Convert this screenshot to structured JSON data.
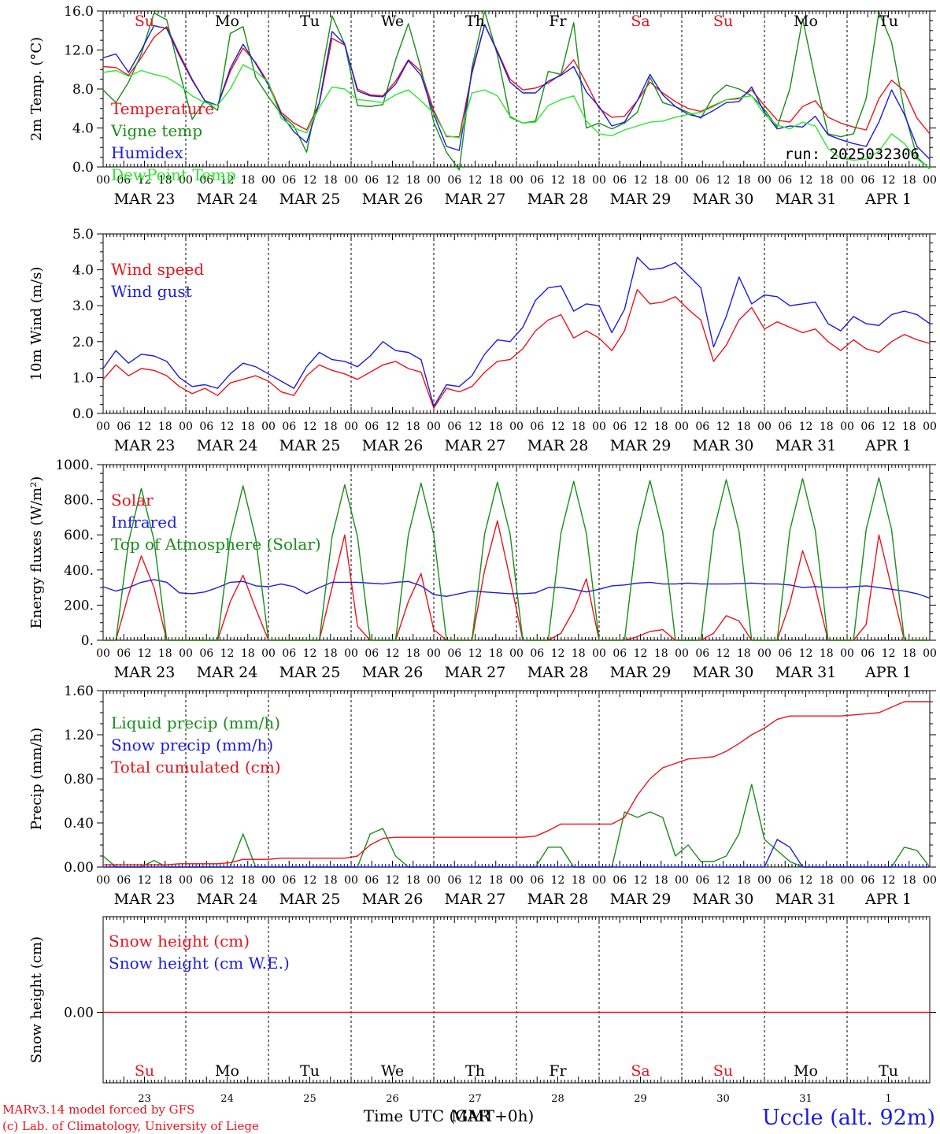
{
  "colors": {
    "red": "#e8141c",
    "green": "#1a8c1a",
    "blue": "#1c1cdc",
    "lightgreen": "#2ce82c",
    "black": "#000000"
  },
  "x_ticks": [
    "00",
    "06",
    "12",
    "18"
  ],
  "x_last_tick": "00",
  "date_labels": [
    "MAR 23",
    "MAR 24",
    "MAR 25",
    "MAR 26",
    "MAR 27",
    "MAR 28",
    "MAR 29",
    "MAR 30",
    "MAR 31",
    "APR  1"
  ],
  "day_names": [
    {
      "name": "Su",
      "weekend": true
    },
    {
      "name": "Mo",
      "weekend": false
    },
    {
      "name": "Tu",
      "weekend": false
    },
    {
      "name": "We",
      "weekend": false
    },
    {
      "name": "Th",
      "weekend": false
    },
    {
      "name": "Fr",
      "weekend": false
    },
    {
      "name": "Sa",
      "weekend": true
    },
    {
      "name": "Su",
      "weekend": true
    },
    {
      "name": "Mo",
      "weekend": false
    },
    {
      "name": "Tu",
      "weekend": false
    }
  ],
  "day_numbers": [
    "23",
    "24",
    "25",
    "26",
    "27",
    "28",
    "29",
    "30",
    "31",
    "1"
  ],
  "xlabel": "Time UTC (GMT+0h)",
  "xlabel_overlay": "MAR",
  "footer": {
    "model": "MARv3.14 model forced by GFS",
    "copyright": "(c) Lab. of Climatology, University of Liege",
    "station": "Uccle (alt. 92m)"
  },
  "chart_data": [
    {
      "type": "line",
      "ylabel": "2m Temp. (°C)",
      "ylim": [
        0,
        16
      ],
      "yticks": [
        "0.0",
        "4.0",
        "8.0",
        "12.0",
        "16.0"
      ],
      "annotation": "run: 2025032306",
      "x_unit": "hours since MAR 23 00 UTC, 3-hourly",
      "series": [
        {
          "name": "Temperature",
          "color": "red",
          "values": [
            10.3,
            10.2,
            9.4,
            11.2,
            13.3,
            14.4,
            11.6,
            9.0,
            6.8,
            6.3,
            9.8,
            12.2,
            10.7,
            8.6,
            5.6,
            4.5,
            3.8,
            6.5,
            13.2,
            12.5,
            8.0,
            7.4,
            7.3,
            8.8,
            11.0,
            9.8,
            5.8,
            3.1,
            3.1,
            9.6,
            14.6,
            11.9,
            9.0,
            7.9,
            8.1,
            8.6,
            9.5,
            11.0,
            8.6,
            6.0,
            5.1,
            5.2,
            6.8,
            8.7,
            7.6,
            6.7,
            6.0,
            5.7,
            6.3,
            6.9,
            7.0,
            7.9,
            6.3,
            4.8,
            4.6,
            6.2,
            6.8,
            5.1,
            4.5,
            4.1,
            3.8,
            7.0,
            8.9,
            7.8,
            5.0,
            3.4
          ]
        },
        {
          "name": "Vigne temp",
          "color": "green",
          "values": [
            7.9,
            6.6,
            8.7,
            11.6,
            15.8,
            15.1,
            9.8,
            4.9,
            6.8,
            5.8,
            13.7,
            14.4,
            9.2,
            7.2,
            5.4,
            4.2,
            1.5,
            8.2,
            15.5,
            12.6,
            6.3,
            6.2,
            6.4,
            11.0,
            14.7,
            10.1,
            4.6,
            1.5,
            -0.3,
            10.2,
            16.2,
            11.5,
            5.1,
            4.5,
            4.7,
            9.8,
            9.5,
            14.8,
            4.0,
            4.5,
            3.9,
            4.5,
            5.6,
            9.2,
            6.6,
            6.2,
            5.6,
            5.0,
            7.3,
            8.4,
            8.0,
            7.3,
            5.9,
            4.1,
            8.0,
            15.2,
            9.0,
            3.4,
            3.1,
            3.4,
            7.0,
            15.9,
            12.8,
            5.7,
            1.0,
            -0.2
          ]
        },
        {
          "name": "Humidex",
          "color": "blue",
          "values": [
            11.2,
            11.6,
            9.7,
            12.0,
            14.5,
            14.2,
            11.4,
            8.9,
            6.8,
            6.3,
            10.1,
            12.6,
            10.6,
            8.4,
            5.4,
            3.6,
            2.5,
            6.6,
            13.9,
            12.6,
            7.8,
            7.3,
            7.2,
            8.5,
            10.9,
            9.4,
            5.4,
            2.1,
            1.7,
            9.8,
            14.6,
            11.8,
            8.7,
            7.6,
            7.6,
            8.8,
            9.4,
            10.3,
            7.7,
            6.2,
            4.2,
            4.6,
            6.8,
            9.5,
            7.4,
            6.2,
            5.4,
            5.1,
            5.8,
            6.6,
            6.7,
            8.2,
            5.6,
            3.9,
            4.2,
            4.1,
            5.2,
            3.3,
            2.8,
            2.4,
            2.1,
            4.6,
            7.9,
            5.4,
            2.1,
            0.8
          ]
        },
        {
          "name": "DewPoint Temp",
          "color": "lightgreen",
          "values": [
            9.7,
            9.9,
            9.3,
            9.9,
            9.5,
            9.2,
            8.4,
            7.3,
            6.6,
            6.3,
            8.0,
            10.5,
            9.8,
            8.7,
            5.0,
            4.0,
            3.5,
            6.1,
            8.2,
            8.0,
            6.9,
            6.8,
            6.6,
            7.4,
            7.9,
            6.8,
            5.5,
            3.2,
            3.0,
            7.6,
            7.9,
            7.3,
            5.2,
            4.5,
            4.6,
            6.3,
            6.9,
            7.3,
            4.7,
            3.4,
            3.2,
            3.8,
            4.2,
            4.6,
            4.7,
            5.1,
            5.4,
            5.6,
            6.2,
            6.9,
            7.1,
            7.3,
            5.4,
            4.3,
            3.9,
            4.6,
            4.2,
            1.9,
            0.9,
            0.7,
            0.8,
            1.6,
            3.4,
            2.4,
            0.8,
            -0.1
          ]
        }
      ]
    },
    {
      "type": "line",
      "ylabel": "10m Wind (m/s)",
      "ylim": [
        0,
        5
      ],
      "yticks": [
        "0.0",
        "1.0",
        "2.0",
        "3.0",
        "4.0",
        "5.0"
      ],
      "x_unit": "hours since MAR 23 00 UTC, 3-hourly",
      "series": [
        {
          "name": "Wind speed",
          "color": "red",
          "values": [
            0.95,
            1.35,
            1.05,
            1.25,
            1.2,
            1.05,
            0.75,
            0.55,
            0.7,
            0.5,
            0.85,
            0.95,
            1.05,
            0.9,
            0.6,
            0.5,
            1.05,
            1.35,
            1.2,
            1.1,
            0.95,
            1.15,
            1.35,
            1.45,
            1.25,
            1.15,
            0.15,
            0.7,
            0.6,
            0.75,
            1.15,
            1.45,
            1.5,
            1.8,
            2.3,
            2.6,
            2.75,
            2.1,
            2.3,
            2.1,
            1.75,
            2.3,
            3.45,
            3.05,
            3.1,
            3.25,
            2.9,
            2.6,
            1.45,
            1.9,
            2.6,
            2.95,
            2.35,
            2.55,
            2.4,
            2.25,
            2.35,
            2.0,
            1.75,
            2.05,
            1.8,
            1.7,
            2.0,
            2.2,
            2.05,
            1.95
          ]
        },
        {
          "name": "Wind gust",
          "color": "blue",
          "values": [
            1.25,
            1.75,
            1.4,
            1.65,
            1.6,
            1.45,
            1.0,
            0.75,
            0.8,
            0.7,
            1.1,
            1.4,
            1.3,
            1.1,
            0.9,
            0.7,
            1.3,
            1.7,
            1.5,
            1.45,
            1.3,
            1.6,
            2.0,
            1.75,
            1.7,
            1.5,
            0.2,
            0.8,
            0.75,
            1.05,
            1.65,
            2.05,
            2.0,
            2.4,
            3.15,
            3.5,
            3.55,
            2.85,
            3.05,
            3.0,
            2.25,
            2.9,
            4.35,
            4.0,
            4.05,
            4.2,
            3.85,
            3.5,
            1.85,
            2.7,
            3.8,
            3.05,
            3.3,
            3.25,
            3.0,
            3.05,
            3.1,
            2.5,
            2.3,
            2.7,
            2.5,
            2.45,
            2.75,
            2.85,
            2.75,
            2.5
          ]
        }
      ]
    },
    {
      "type": "line",
      "ylabel": "Energy fluxes (W/m²)",
      "ylim": [
        0,
        1000
      ],
      "yticks": [
        "0.",
        "200.",
        "400.",
        "600.",
        "800.",
        "1000."
      ],
      "x_unit": "hours since MAR 23 00 UTC, 3-hourly",
      "series": [
        {
          "name": "Solar",
          "color": "red",
          "values": [
            0,
            0,
            260,
            480,
            300,
            0,
            0,
            0,
            0,
            0,
            220,
            370,
            180,
            0,
            0,
            0,
            0,
            0,
            300,
            600,
            80,
            0,
            0,
            0,
            220,
            380,
            60,
            0,
            0,
            0,
            400,
            680,
            350,
            0,
            0,
            0,
            40,
            170,
            350,
            0,
            0,
            0,
            20,
            50,
            60,
            0,
            0,
            0,
            40,
            140,
            110,
            0,
            0,
            0,
            210,
            510,
            300,
            0,
            0,
            0,
            90,
            600,
            300,
            0,
            0,
            0
          ]
        },
        {
          "name": "Infrared",
          "color": "blue",
          "values": [
            305,
            280,
            300,
            330,
            345,
            330,
            270,
            265,
            275,
            300,
            330,
            335,
            310,
            305,
            320,
            305,
            265,
            300,
            330,
            330,
            330,
            325,
            320,
            330,
            335,
            310,
            260,
            250,
            265,
            280,
            275,
            270,
            265,
            265,
            270,
            300,
            300,
            290,
            275,
            290,
            310,
            315,
            325,
            330,
            320,
            320,
            325,
            320,
            320,
            320,
            322,
            325,
            320,
            320,
            315,
            300,
            305,
            300,
            300,
            305,
            310,
            300,
            290,
            280,
            265,
            240
          ]
        },
        {
          "name": "Top of Atmosphere (Solar)",
          "color": "green",
          "values": [
            0,
            0,
            560,
            865,
            570,
            0,
            0,
            0,
            0,
            0,
            580,
            880,
            580,
            0,
            0,
            0,
            0,
            0,
            590,
            885,
            590,
            0,
            0,
            0,
            600,
            895,
            600,
            0,
            0,
            0,
            605,
            900,
            605,
            0,
            0,
            0,
            610,
            905,
            610,
            0,
            0,
            0,
            615,
            910,
            615,
            0,
            0,
            0,
            620,
            915,
            620,
            0,
            0,
            0,
            625,
            920,
            625,
            0,
            0,
            0,
            630,
            925,
            630,
            0,
            0,
            0
          ]
        }
      ]
    },
    {
      "type": "line",
      "ylabel": "Precip (mm/h)",
      "ylim": [
        0,
        1.6
      ],
      "yticks": [
        "0.00",
        "0.40",
        "0.80",
        "1.20",
        "1.60"
      ],
      "x_unit": "hours since MAR 23 00 UTC, 3-hourly",
      "series": [
        {
          "name": "Liquid precip (mm/h)",
          "color": "green",
          "values": [
            0.1,
            0,
            0,
            0,
            0.06,
            0,
            0,
            0,
            0,
            0,
            0,
            0.3,
            0,
            0,
            0,
            0,
            0,
            0,
            0,
            0,
            0,
            0.3,
            0.35,
            0.1,
            0,
            0,
            0,
            0,
            0,
            0,
            0,
            0,
            0,
            0,
            0,
            0.18,
            0.18,
            0,
            0,
            0,
            0,
            0.5,
            0.45,
            0.5,
            0.45,
            0.1,
            0.2,
            0.05,
            0.05,
            0.1,
            0.3,
            0.75,
            0.25,
            0.15,
            0.05,
            0,
            0,
            0,
            0,
            0,
            0,
            0,
            0,
            0.18,
            0.15,
            0
          ]
        },
        {
          "name": "Snow precip (mm/h)",
          "color": "blue",
          "values": [
            0,
            0,
            0,
            0,
            0,
            0,
            0,
            0,
            0,
            0,
            0,
            0,
            0,
            0,
            0,
            0,
            0,
            0,
            0,
            0,
            0,
            0,
            0,
            0,
            0,
            0,
            0,
            0,
            0,
            0,
            0,
            0,
            0,
            0,
            0,
            0,
            0,
            0,
            0,
            0,
            0,
            0,
            0,
            0,
            0,
            0,
            0,
            0,
            0,
            0,
            0,
            0,
            0,
            0.25,
            0.18,
            0,
            0,
            0,
            0,
            0,
            0,
            0,
            0,
            0,
            0,
            0
          ]
        },
        {
          "name": "Total cumulated (cm)",
          "color": "red",
          "values": [
            0.02,
            0.02,
            0.02,
            0.02,
            0.02,
            0.02,
            0.03,
            0.03,
            0.03,
            0.03,
            0.04,
            0.07,
            0.07,
            0.07,
            0.08,
            0.08,
            0.08,
            0.08,
            0.08,
            0.08,
            0.1,
            0.2,
            0.26,
            0.27,
            0.27,
            0.27,
            0.27,
            0.27,
            0.27,
            0.27,
            0.27,
            0.27,
            0.27,
            0.27,
            0.28,
            0.33,
            0.39,
            0.39,
            0.39,
            0.39,
            0.39,
            0.45,
            0.65,
            0.8,
            0.9,
            0.94,
            0.98,
            0.99,
            1.0,
            1.05,
            1.12,
            1.2,
            1.26,
            1.34,
            1.37,
            1.37,
            1.37,
            1.37,
            1.37,
            1.38,
            1.39,
            1.4,
            1.45,
            1.5,
            1.5,
            1.5
          ]
        }
      ]
    },
    {
      "type": "line",
      "ylabel": "Snow height (cm)",
      "yticks": [
        "0.00"
      ],
      "x_unit": "hours since MAR 23 00 UTC, 3-hourly",
      "series": [
        {
          "name": "Snow height (cm)",
          "color": "red",
          "values": [
            0,
            0
          ]
        },
        {
          "name": "Snow height (cm W.E.)",
          "color": "blue",
          "values": []
        }
      ]
    }
  ]
}
